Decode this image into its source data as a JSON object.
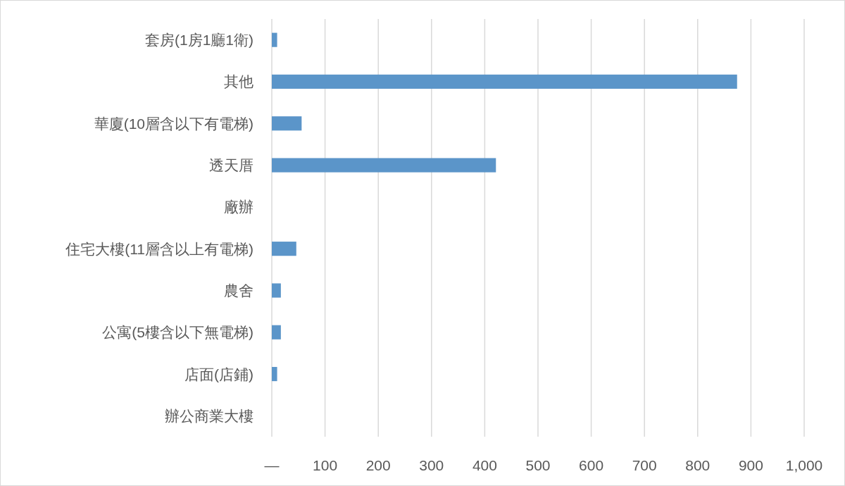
{
  "chart_data": {
    "type": "bar",
    "orientation": "horizontal",
    "categories": [
      "套房(1房1廳1衛)",
      "其他",
      "華廈(10層含以下有電梯)",
      "透天厝",
      "廠辦",
      "住宅大樓(11層含以上有電梯)",
      "農舍",
      "公寓(5樓含以下無電梯)",
      "店面(店鋪)",
      "辦公商業大樓"
    ],
    "values": [
      10,
      874,
      56,
      421,
      0,
      46,
      17,
      17,
      10,
      0
    ],
    "color": "#5b95c9",
    "xlim": [
      0,
      1000
    ],
    "xticks": [
      {
        "value": 0,
        "label": "—"
      },
      100,
      200,
      300,
      400,
      500,
      600,
      700,
      800,
      900,
      {
        "value": 1000,
        "label": "1,000"
      }
    ],
    "grid": "x"
  }
}
